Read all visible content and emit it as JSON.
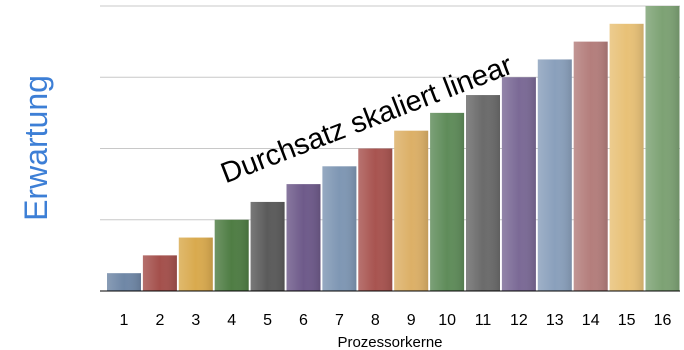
{
  "chart_data": {
    "type": "bar",
    "categories": [
      "1",
      "2",
      "3",
      "4",
      "5",
      "6",
      "7",
      "8",
      "9",
      "10",
      "11",
      "12",
      "13",
      "14",
      "15",
      "16"
    ],
    "values": [
      1,
      2,
      3,
      4,
      5,
      6,
      7,
      8,
      9,
      10,
      11,
      12,
      13,
      14,
      15,
      16
    ],
    "xlabel": "Prozessorkerne",
    "ylabel": "Erwartung",
    "annotation": "Durchsatz skaliert linear",
    "ylim": [
      0,
      16
    ],
    "grid": true,
    "bar_colors": [
      "#6f87a6",
      "#a4504c",
      "#d9aa4e",
      "#4f7d44",
      "#5b5b5b",
      "#6e5a8a",
      "#7f97b4",
      "#a85450",
      "#dcb067",
      "#5f8c5a",
      "#6b6b6b",
      "#7b6a96",
      "#8aa0bc",
      "#b47e7c",
      "#e8c177",
      "#7da274"
    ]
  }
}
